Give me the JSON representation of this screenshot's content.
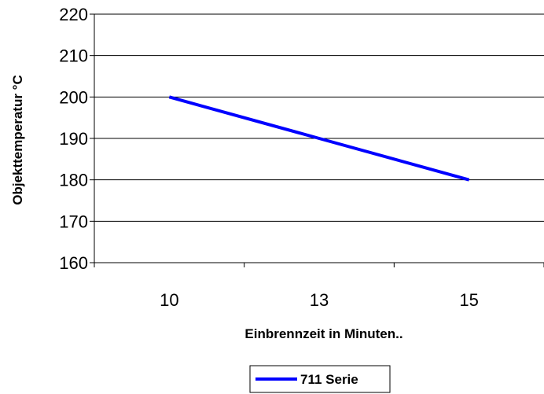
{
  "chart_data": {
    "type": "line",
    "categories": [
      "10",
      "13",
      "15"
    ],
    "series": [
      {
        "name": "711 Serie",
        "values": [
          200,
          190,
          180
        ],
        "color": "#0000FF"
      }
    ],
    "xlabel": "Einbrennzeit in Minuten..",
    "ylabel": "Objekttemperatur °C",
    "ylim": [
      160,
      220
    ],
    "yticks": [
      "160",
      "170",
      "180",
      "190",
      "200",
      "210",
      "220"
    ],
    "grid": true,
    "legend": "bottom-center"
  }
}
